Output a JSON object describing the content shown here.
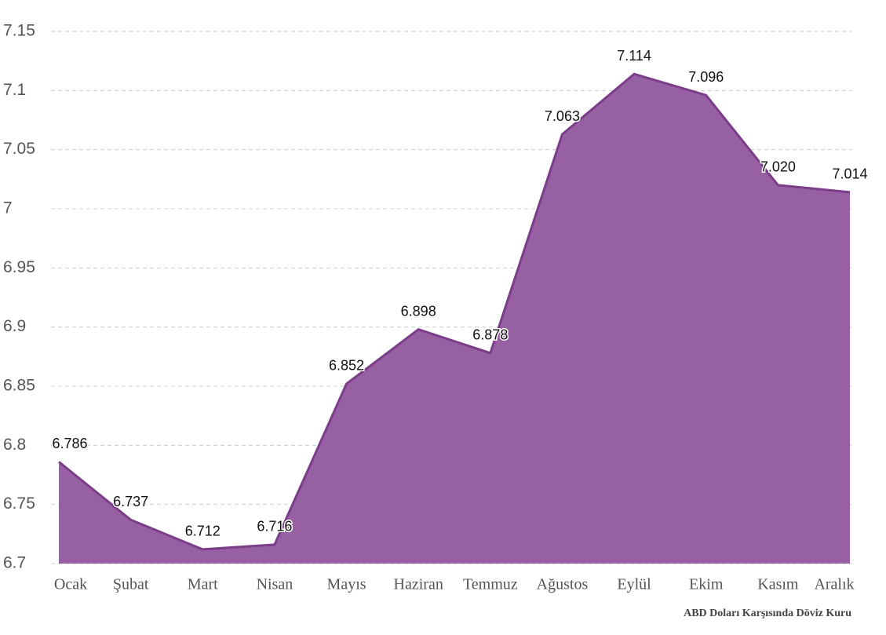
{
  "chart_data": {
    "type": "area",
    "caption": "ABD Doları Karşısında Döviz Kuru",
    "categories": [
      "Ocak",
      "Şubat",
      "Mart",
      "Nisan",
      "Mayıs",
      "Haziran",
      "Temmuz",
      "Ağustos",
      "Eylül",
      "Ekim",
      "Kasım",
      "Aralık"
    ],
    "values": [
      6.786,
      6.737,
      6.712,
      6.716,
      6.852,
      6.898,
      6.878,
      7.063,
      7.114,
      7.096,
      7.02,
      7.014
    ],
    "value_labels": [
      "6.786",
      "6.737",
      "6.712",
      "6.716",
      "6.852",
      "6.898",
      "6.878",
      "7.063",
      "7.114",
      "7.096",
      "7.020",
      "7.014"
    ],
    "color": "#9660a2",
    "line_color": "#7b3d8a",
    "ylim": [
      6.7,
      7.15
    ],
    "yticks": [
      6.7,
      6.75,
      6.8,
      6.85,
      6.9,
      6.95,
      7,
      7.05,
      7.1,
      7.15
    ],
    "grid": true
  }
}
